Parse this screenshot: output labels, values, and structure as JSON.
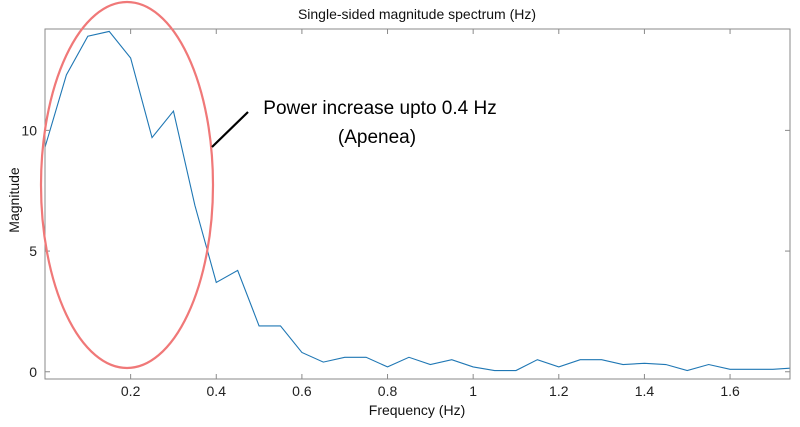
{
  "chart_data": {
    "type": "line",
    "title": "Single-sided magnitude spectrum (Hz)",
    "xlabel": "Frequency (Hz)",
    "ylabel": "Magnitude",
    "xlim": [
      0,
      1.74
    ],
    "ylim": [
      -0.3,
      14.2
    ],
    "xticks": [
      0.2,
      0.4,
      0.6,
      0.8,
      1,
      1.2,
      1.4,
      1.6
    ],
    "xtick_labels": [
      "0.2",
      "0.4",
      "0.6",
      "0.8",
      "1",
      "1.2",
      "1.4",
      "1.6"
    ],
    "yticks": [
      0,
      5,
      10
    ],
    "ytick_labels": [
      "0",
      "5",
      "10"
    ],
    "grid": false,
    "series": [
      {
        "color": "#1f77b4",
        "x": [
          0,
          0.05,
          0.1,
          0.15,
          0.2,
          0.25,
          0.3,
          0.35,
          0.4,
          0.45,
          0.5,
          0.55,
          0.6,
          0.65,
          0.7,
          0.75,
          0.8,
          0.85,
          0.9,
          0.95,
          1.0,
          1.05,
          1.1,
          1.15,
          1.2,
          1.25,
          1.3,
          1.35,
          1.4,
          1.45,
          1.5,
          1.55,
          1.6,
          1.65,
          1.7,
          1.74
        ],
        "y": [
          9.3,
          12.3,
          13.9,
          14.1,
          13.0,
          9.7,
          10.8,
          6.9,
          3.7,
          4.2,
          1.9,
          1.9,
          0.8,
          0.4,
          0.6,
          0.6,
          0.2,
          0.6,
          0.3,
          0.5,
          0.2,
          0.05,
          0.05,
          0.5,
          0.2,
          0.5,
          0.5,
          0.3,
          0.35,
          0.3,
          0.05,
          0.3,
          0.1,
          0.1,
          0.1,
          0.15
        ]
      }
    ],
    "annotations": [
      {
        "lines": [
          "Power increase upto 0.4 Hz",
          "(Apenea)"
        ],
        "ellipse_color": "#f07878"
      }
    ]
  }
}
